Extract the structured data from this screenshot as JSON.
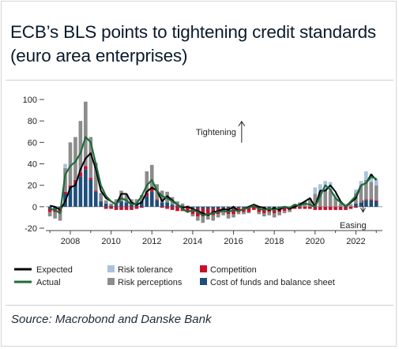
{
  "title": "ECB’s BLS points to tightening credit standards (euro area enterprises)",
  "source": "Source: Macrobond and Danske Bank",
  "colors": {
    "expected": "#000000",
    "actual": "#1e6b3a",
    "risk_tolerance": "#a9c3dd",
    "risk_perceptions": "#8c8c8c",
    "competition": "#c8102e",
    "cost_of_funds": "#1f4e79"
  },
  "chart_data": {
    "type": "bar",
    "title": "ECB’s BLS points to tightening credit standards (euro area enterprises)",
    "xlim": [
      2006.8,
      2023.3
    ],
    "ylim": [
      -20,
      100
    ],
    "yticks": [
      -20,
      0,
      20,
      40,
      60,
      80,
      100
    ],
    "xticks": [
      2008,
      2010,
      2012,
      2014,
      2016,
      2018,
      2020,
      2022
    ],
    "annotations": [
      {
        "text": "Tightening",
        "x": 2016.4,
        "y": 70
      },
      {
        "text": "Easing",
        "x": 2022.2,
        "y": -17
      }
    ],
    "legend": [
      {
        "key": "expected",
        "label": "Expected",
        "kind": "line"
      },
      {
        "key": "risk_tolerance",
        "label": "Risk tolerance",
        "kind": "box"
      },
      {
        "key": "competition",
        "label": "Competition",
        "kind": "box"
      },
      {
        "key": "actual",
        "label": "Actual",
        "kind": "line"
      },
      {
        "key": "risk_perceptions",
        "label": "Risk perceptions",
        "kind": "box"
      },
      {
        "key": "cost_of_funds",
        "label": "Cost of funds and balance sheet",
        "kind": "box"
      }
    ],
    "bars": [
      {
        "x": 2007.0,
        "cost_of_funds": -2,
        "risk_perceptions": -4,
        "competition": -3,
        "risk_tolerance": 0
      },
      {
        "x": 2007.25,
        "cost_of_funds": -2,
        "risk_perceptions": -6,
        "competition": -3,
        "risk_tolerance": 0
      },
      {
        "x": 2007.5,
        "cost_of_funds": -1,
        "risk_perceptions": -8,
        "competition": -4,
        "risk_tolerance": 0
      },
      {
        "x": 2007.75,
        "cost_of_funds": 12,
        "risk_perceptions": 22,
        "competition": 2,
        "risk_tolerance": 4
      },
      {
        "x": 2008.0,
        "cost_of_funds": 18,
        "risk_perceptions": 40,
        "competition": 2,
        "risk_tolerance": 0
      },
      {
        "x": 2008.25,
        "cost_of_funds": 22,
        "risk_perceptions": 40,
        "competition": 3,
        "risk_tolerance": 0
      },
      {
        "x": 2008.5,
        "cost_of_funds": 28,
        "risk_perceptions": 48,
        "competition": 4,
        "risk_tolerance": 0
      },
      {
        "x": 2008.75,
        "cost_of_funds": 35,
        "risk_perceptions": 60,
        "competition": 3,
        "risk_tolerance": 0
      },
      {
        "x": 2009.0,
        "cost_of_funds": 25,
        "risk_perceptions": 38,
        "competition": 2,
        "risk_tolerance": 0
      },
      {
        "x": 2009.25,
        "cost_of_funds": 14,
        "risk_perceptions": 26,
        "competition": 1,
        "risk_tolerance": 0
      },
      {
        "x": 2009.5,
        "cost_of_funds": 5,
        "risk_perceptions": 8,
        "competition": 0,
        "risk_tolerance": 0
      },
      {
        "x": 2009.75,
        "cost_of_funds": 3,
        "risk_perceptions": 3,
        "competition": -2,
        "risk_tolerance": 0
      },
      {
        "x": 2010.0,
        "cost_of_funds": 1,
        "risk_perceptions": 2,
        "competition": -2,
        "risk_tolerance": 0
      },
      {
        "x": 2010.25,
        "cost_of_funds": 2,
        "risk_perceptions": 5,
        "competition": -3,
        "risk_tolerance": 0
      },
      {
        "x": 2010.5,
        "cost_of_funds": 5,
        "risk_perceptions": 10,
        "competition": -3,
        "risk_tolerance": 0
      },
      {
        "x": 2010.75,
        "cost_of_funds": 4,
        "risk_perceptions": 8,
        "competition": -3,
        "risk_tolerance": 0
      },
      {
        "x": 2011.0,
        "cost_of_funds": 2,
        "risk_perceptions": 5,
        "competition": -3,
        "risk_tolerance": 0
      },
      {
        "x": 2011.25,
        "cost_of_funds": 3,
        "risk_perceptions": 4,
        "competition": -2,
        "risk_tolerance": 0
      },
      {
        "x": 2011.5,
        "cost_of_funds": 5,
        "risk_perceptions": 6,
        "competition": -1,
        "risk_tolerance": 0
      },
      {
        "x": 2011.75,
        "cost_of_funds": 10,
        "risk_perceptions": 20,
        "competition": 3,
        "risk_tolerance": 0
      },
      {
        "x": 2012.0,
        "cost_of_funds": 14,
        "risk_perceptions": 22,
        "competition": 3,
        "risk_tolerance": 0
      },
      {
        "x": 2012.25,
        "cost_of_funds": 6,
        "risk_perceptions": 14,
        "competition": 1,
        "risk_tolerance": 0
      },
      {
        "x": 2012.5,
        "cost_of_funds": 4,
        "risk_perceptions": 11,
        "competition": -1,
        "risk_tolerance": 0
      },
      {
        "x": 2012.75,
        "cost_of_funds": 4,
        "risk_perceptions": 10,
        "competition": -2,
        "risk_tolerance": 0
      },
      {
        "x": 2013.0,
        "cost_of_funds": 2,
        "risk_perceptions": 7,
        "competition": -3,
        "risk_tolerance": 0
      },
      {
        "x": 2013.25,
        "cost_of_funds": 1,
        "risk_perceptions": 4,
        "competition": -4,
        "risk_tolerance": 0
      },
      {
        "x": 2013.5,
        "cost_of_funds": 1,
        "risk_perceptions": 2,
        "competition": -4,
        "risk_tolerance": 0
      },
      {
        "x": 2013.75,
        "cost_of_funds": 0,
        "risk_perceptions": 1,
        "competition": -5,
        "risk_tolerance": 0
      },
      {
        "x": 2014.0,
        "cost_of_funds": -1,
        "risk_perceptions": -2,
        "competition": -6,
        "risk_tolerance": 0
      },
      {
        "x": 2014.25,
        "cost_of_funds": -2,
        "risk_perceptions": -4,
        "competition": -7,
        "risk_tolerance": 0
      },
      {
        "x": 2014.5,
        "cost_of_funds": -2,
        "risk_perceptions": -6,
        "competition": -7,
        "risk_tolerance": 0
      },
      {
        "x": 2014.75,
        "cost_of_funds": -2,
        "risk_perceptions": -4,
        "competition": -6,
        "risk_tolerance": 0
      },
      {
        "x": 2015.0,
        "cost_of_funds": -2,
        "risk_perceptions": -5,
        "competition": -6,
        "risk_tolerance": 0
      },
      {
        "x": 2015.25,
        "cost_of_funds": -2,
        "risk_perceptions": -3,
        "competition": -5,
        "risk_tolerance": 0
      },
      {
        "x": 2015.5,
        "cost_of_funds": -1,
        "risk_perceptions": -3,
        "competition": -4,
        "risk_tolerance": 0
      },
      {
        "x": 2015.75,
        "cost_of_funds": -2,
        "risk_perceptions": -4,
        "competition": -5,
        "risk_tolerance": 0
      },
      {
        "x": 2016.0,
        "cost_of_funds": -2,
        "risk_perceptions": -3,
        "competition": -5,
        "risk_tolerance": 0
      },
      {
        "x": 2016.25,
        "cost_of_funds": -1,
        "risk_perceptions": -2,
        "competition": -4,
        "risk_tolerance": 0
      },
      {
        "x": 2016.5,
        "cost_of_funds": -1,
        "risk_perceptions": -2,
        "competition": -4,
        "risk_tolerance": 0
      },
      {
        "x": 2016.75,
        "cost_of_funds": -1,
        "risk_perceptions": -1,
        "competition": -4,
        "risk_tolerance": 0
      },
      {
        "x": 2017.0,
        "cost_of_funds": 0,
        "risk_perceptions": 2,
        "competition": -3,
        "risk_tolerance": 0
      },
      {
        "x": 2017.25,
        "cost_of_funds": -1,
        "risk_perceptions": -2,
        "competition": -4,
        "risk_tolerance": 0
      },
      {
        "x": 2017.5,
        "cost_of_funds": -1,
        "risk_perceptions": -3,
        "competition": -5,
        "risk_tolerance": 0
      },
      {
        "x": 2017.75,
        "cost_of_funds": -1,
        "risk_perceptions": -3,
        "competition": -4,
        "risk_tolerance": 0
      },
      {
        "x": 2018.0,
        "cost_of_funds": -1,
        "risk_perceptions": -4,
        "competition": -5,
        "risk_tolerance": 0
      },
      {
        "x": 2018.25,
        "cost_of_funds": -1,
        "risk_perceptions": -3,
        "competition": -4,
        "risk_tolerance": 0
      },
      {
        "x": 2018.5,
        "cost_of_funds": -1,
        "risk_perceptions": -2,
        "competition": -3,
        "risk_tolerance": 0
      },
      {
        "x": 2018.75,
        "cost_of_funds": 0,
        "risk_perceptions": -2,
        "competition": -3,
        "risk_tolerance": 0
      },
      {
        "x": 2019.0,
        "cost_of_funds": 0,
        "risk_perceptions": 2,
        "competition": -2,
        "risk_tolerance": 0
      },
      {
        "x": 2019.25,
        "cost_of_funds": 0,
        "risk_perceptions": 4,
        "competition": -2,
        "risk_tolerance": 0
      },
      {
        "x": 2019.5,
        "cost_of_funds": 0,
        "risk_perceptions": 5,
        "competition": -2,
        "risk_tolerance": 0
      },
      {
        "x": 2019.75,
        "cost_of_funds": 0,
        "risk_perceptions": 8,
        "competition": -2,
        "risk_tolerance": 0
      },
      {
        "x": 2020.0,
        "cost_of_funds": 0,
        "risk_perceptions": 12,
        "competition": -3,
        "risk_tolerance": 6
      },
      {
        "x": 2020.25,
        "cost_of_funds": 0,
        "risk_perceptions": 14,
        "competition": -3,
        "risk_tolerance": 7
      },
      {
        "x": 2020.5,
        "cost_of_funds": 0,
        "risk_perceptions": 16,
        "competition": -3,
        "risk_tolerance": 8
      },
      {
        "x": 2020.75,
        "cost_of_funds": 0,
        "risk_perceptions": 15,
        "competition": -3,
        "risk_tolerance": 8
      },
      {
        "x": 2021.0,
        "cost_of_funds": 0,
        "risk_perceptions": 8,
        "competition": -3,
        "risk_tolerance": 4
      },
      {
        "x": 2021.25,
        "cost_of_funds": 0,
        "risk_perceptions": 3,
        "competition": -3,
        "risk_tolerance": 2
      },
      {
        "x": 2021.5,
        "cost_of_funds": 0,
        "risk_perceptions": 2,
        "competition": -3,
        "risk_tolerance": 1
      },
      {
        "x": 2021.75,
        "cost_of_funds": 0,
        "risk_perceptions": 2,
        "competition": -2,
        "risk_tolerance": 1
      },
      {
        "x": 2022.0,
        "cost_of_funds": 3,
        "risk_perceptions": 10,
        "competition": -1,
        "risk_tolerance": 3
      },
      {
        "x": 2022.25,
        "cost_of_funds": 4,
        "risk_perceptions": 16,
        "competition": 0,
        "risk_tolerance": 4
      },
      {
        "x": 2022.5,
        "cost_of_funds": 6,
        "risk_perceptions": 18,
        "competition": 1,
        "risk_tolerance": 8
      },
      {
        "x": 2022.75,
        "cost_of_funds": 6,
        "risk_perceptions": 16,
        "competition": 1,
        "risk_tolerance": 8
      },
      {
        "x": 2023.0,
        "cost_of_funds": 5,
        "risk_perceptions": 14,
        "competition": 1,
        "risk_tolerance": 6
      }
    ],
    "series": [
      {
        "name": "Expected",
        "key": "expected",
        "x": [
          2007.0,
          2007.25,
          2007.5,
          2007.75,
          2008.0,
          2008.25,
          2008.5,
          2008.75,
          2009.0,
          2009.25,
          2009.5,
          2009.75,
          2010.0,
          2010.25,
          2010.5,
          2010.75,
          2011.0,
          2011.25,
          2011.5,
          2011.75,
          2012.0,
          2012.25,
          2012.5,
          2012.75,
          2013.0,
          2013.25,
          2013.5,
          2013.75,
          2014.0,
          2014.25,
          2014.5,
          2014.75,
          2015.0,
          2015.25,
          2015.5,
          2015.75,
          2016.0,
          2016.25,
          2016.5,
          2016.75,
          2017.0,
          2017.25,
          2017.5,
          2017.75,
          2018.0,
          2018.25,
          2018.5,
          2018.75,
          2019.0,
          2019.25,
          2019.5,
          2019.75,
          2020.0,
          2020.25,
          2020.5,
          2020.75,
          2021.0,
          2021.25,
          2021.5,
          2021.75,
          2022.0,
          2022.25,
          2022.5,
          2022.75,
          2023.0
        ],
        "values": [
          1,
          0,
          -3,
          5,
          18,
          20,
          35,
          45,
          50,
          35,
          15,
          8,
          5,
          2,
          12,
          12,
          4,
          2,
          4,
          14,
          18,
          15,
          5,
          10,
          6,
          2,
          -1,
          0,
          -2,
          -4,
          -6,
          -8,
          -5,
          -4,
          -2,
          -3,
          0,
          -4,
          -2,
          0,
          2,
          0,
          -1,
          -3,
          -1,
          -3,
          0,
          -2,
          0,
          2,
          5,
          8,
          0,
          15,
          15,
          20,
          14,
          5,
          0,
          4,
          8,
          20,
          22,
          30,
          25
        ]
      },
      {
        "name": "Actual",
        "key": "actual",
        "x": [
          2007.0,
          2007.25,
          2007.5,
          2007.75,
          2008.0,
          2008.25,
          2008.5,
          2008.75,
          2009.0,
          2009.25,
          2009.5,
          2009.75,
          2010.0,
          2010.25,
          2010.5,
          2010.75,
          2011.0,
          2011.25,
          2011.5,
          2011.75,
          2012.0,
          2012.25,
          2012.5,
          2012.75,
          2013.0,
          2013.25,
          2013.5,
          2013.75,
          2014.0,
          2014.25,
          2014.5,
          2014.75,
          2015.0,
          2015.25,
          2015.5,
          2015.75,
          2016.0,
          2016.25,
          2016.5,
          2016.75,
          2017.0,
          2017.25,
          2017.5,
          2017.75,
          2018.0,
          2018.25,
          2018.5,
          2018.75,
          2019.0,
          2019.25,
          2019.5,
          2019.75,
          2020.0,
          2020.25,
          2020.5,
          2020.75,
          2021.0,
          2021.25,
          2021.5,
          2021.75,
          2022.0,
          2022.25,
          2022.5,
          2022.75,
          2023.0
        ],
        "values": [
          -2,
          -3,
          -6,
          30,
          38,
          42,
          50,
          65,
          60,
          40,
          20,
          10,
          5,
          2,
          8,
          6,
          2,
          3,
          10,
          20,
          25,
          15,
          10,
          8,
          5,
          2,
          -2,
          -5,
          -3,
          -5,
          -8,
          -7,
          -6,
          -5,
          -4,
          -5,
          -3,
          -4,
          -2,
          -1,
          1,
          -2,
          -3,
          -2,
          -3,
          -1,
          0,
          -1,
          2,
          1,
          3,
          2,
          0,
          10,
          20,
          16,
          8,
          4,
          0,
          5,
          10,
          20,
          22,
          28,
          26
        ]
      }
    ]
  }
}
